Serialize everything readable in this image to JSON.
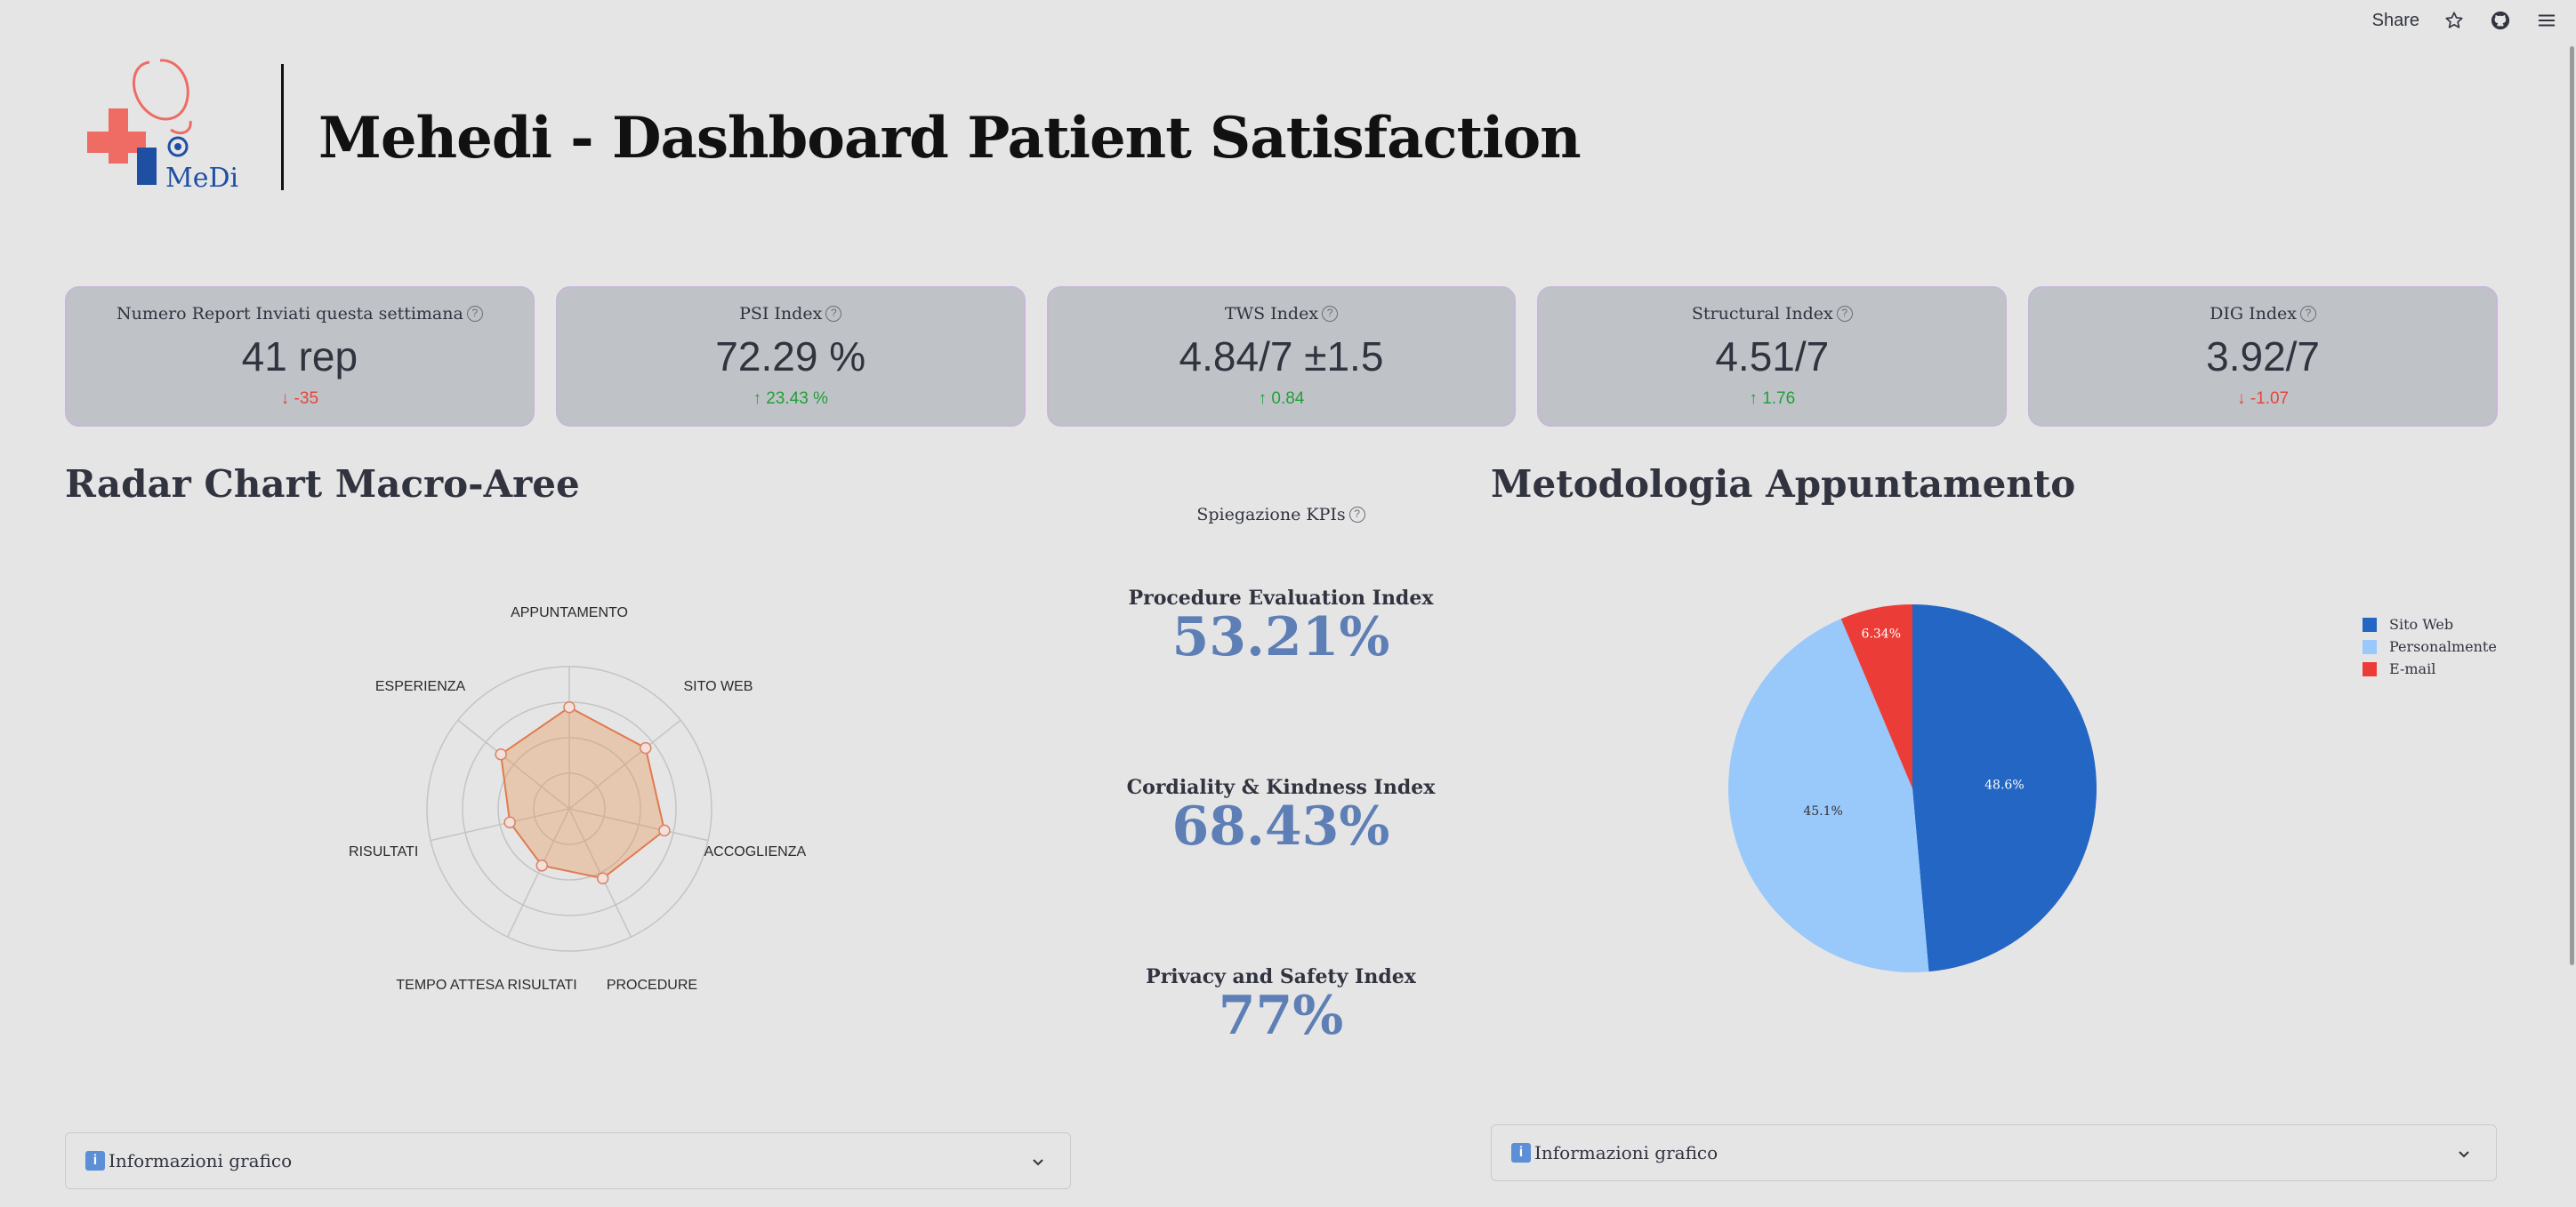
{
  "toolbar": {
    "share_label": "Share"
  },
  "header": {
    "title": "Mehedi - Dashboard Patient Satisfaction",
    "logo_text": "MeDi"
  },
  "metrics": [
    {
      "label": "Numero Report Inviati questa settimana",
      "value": "41 rep",
      "delta": "-35",
      "direction": "down"
    },
    {
      "label": "PSI Index",
      "value": "72.29 %",
      "delta": "23.43 %",
      "direction": "up"
    },
    {
      "label": "TWS Index",
      "value": "4.84/7 ±1.5",
      "delta": "0.84",
      "direction": "up"
    },
    {
      "label": "Structural Index",
      "value": "4.51/7",
      "delta": "1.76",
      "direction": "up"
    },
    {
      "label": "DIG Index",
      "value": "3.92/7",
      "delta": "-1.07",
      "direction": "down"
    }
  ],
  "radar": {
    "title": "Radar Chart Macro-Aree",
    "chart_data": {
      "type": "radar",
      "categories": [
        "APPUNTAMENTO",
        "SITO WEB",
        "ACCOGLIENZA",
        "PROCEDURE",
        "TEMPO ATTESA RISULTATI",
        "RISULTATI",
        "ESPERIENZA"
      ],
      "values": [
        5.0,
        4.8,
        4.8,
        3.8,
        3.1,
        3.0,
        4.3
      ],
      "range": [
        0,
        7
      ],
      "color": "#e07b4f"
    }
  },
  "kpis": {
    "heading": "Spiegazione KPIs",
    "items": [
      {
        "label": "Procedure Evaluation Index",
        "value": "53.21%"
      },
      {
        "label": "Cordiality & Kindness Index",
        "value": "68.43%"
      },
      {
        "label": "Privacy and Safety Index",
        "value": "77%"
      }
    ]
  },
  "pie": {
    "title": "Metodologia Appuntamento",
    "chart_data": {
      "type": "pie",
      "labels": [
        "Sito Web",
        "Personalmente",
        "E-mail"
      ],
      "values": [
        48.6,
        45.1,
        6.34
      ],
      "value_labels": [
        "48.6%",
        "45.1%",
        "6.34%"
      ],
      "colors": [
        "#2366c4",
        "#99c8fa",
        "#ec3c37"
      ],
      "legend": "top-right"
    }
  },
  "expanders": {
    "left_label": "Informazioni grafico",
    "right_label": "Informazioni grafico"
  }
}
